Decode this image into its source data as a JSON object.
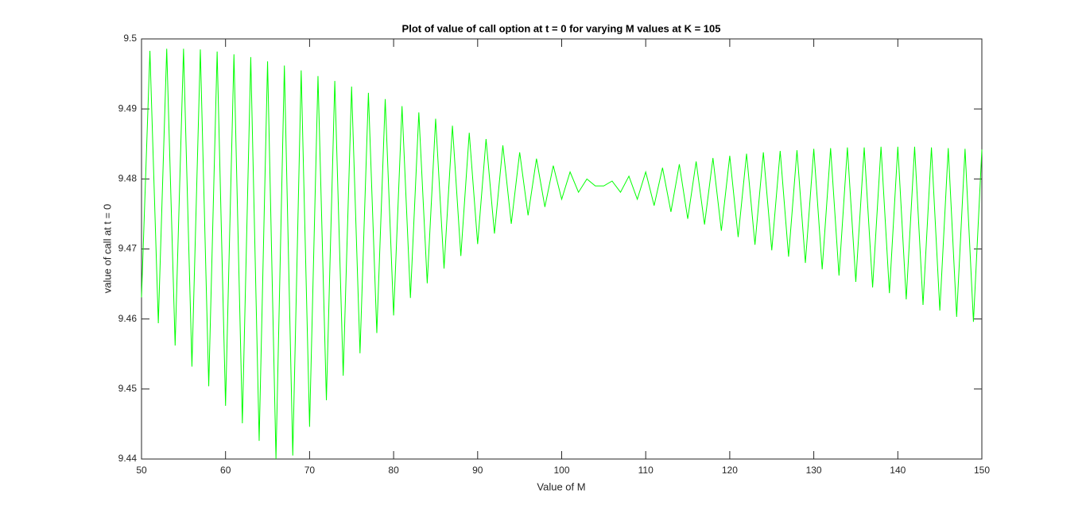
{
  "chart_data": {
    "type": "line",
    "title": "Plot of value of call option at t = 0 for varying M values at K = 105",
    "x_label": "Value of M",
    "y_label": "value of call at t = 0",
    "x": [
      50,
      51,
      52,
      53,
      54,
      55,
      56,
      57,
      58,
      59,
      60,
      61,
      62,
      63,
      64,
      65,
      66,
      67,
      68,
      69,
      70,
      71,
      72,
      73,
      74,
      75,
      76,
      77,
      78,
      79,
      80,
      81,
      82,
      83,
      84,
      85,
      86,
      87,
      88,
      89,
      90,
      91,
      92,
      93,
      94,
      95,
      96,
      97,
      98,
      99,
      100,
      101,
      102,
      103,
      104,
      105,
      106,
      107,
      108,
      109,
      110,
      111,
      112,
      113,
      114,
      115,
      116,
      117,
      118,
      119,
      120,
      121,
      122,
      123,
      124,
      125,
      126,
      127,
      128,
      129,
      130,
      131,
      132,
      133,
      134,
      135,
      136,
      137,
      138,
      139,
      140,
      141,
      142,
      143,
      144,
      145,
      146,
      147,
      148,
      149,
      150
    ],
    "series": [
      {
        "name": "value of call at t = 0",
        "color": "#00ff00",
        "values": [
          9.4631,
          9.4983,
          9.4594,
          9.4986,
          9.4562,
          9.4986,
          9.4532,
          9.4985,
          9.4504,
          9.4982,
          9.4476,
          9.4978,
          9.4451,
          9.4974,
          9.4426,
          9.4968,
          9.44,
          9.4962,
          9.4405,
          9.4955,
          9.4446,
          9.4947,
          9.4484,
          9.494,
          9.4519,
          9.4932,
          9.4551,
          9.4923,
          9.458,
          9.4914,
          9.4605,
          9.4904,
          9.463,
          9.4895,
          9.4651,
          9.4886,
          9.4672,
          9.4876,
          9.469,
          9.4866,
          9.4707,
          9.4857,
          9.4722,
          9.4848,
          9.4736,
          9.4838,
          9.4748,
          9.4829,
          9.476,
          9.4819,
          9.4771,
          9.481,
          9.4781,
          9.48,
          9.479,
          9.479,
          9.4797,
          9.4781,
          9.4804,
          9.4771,
          9.481,
          9.4762,
          9.4816,
          9.4753,
          9.4821,
          9.4743,
          9.4825,
          9.4735,
          9.483,
          9.4726,
          9.4833,
          9.4717,
          9.4836,
          9.4706,
          9.4838,
          9.4698,
          9.484,
          9.4689,
          9.4841,
          9.468,
          9.4843,
          9.4671,
          9.4844,
          9.4662,
          9.4845,
          9.4653,
          9.4845,
          9.4645,
          9.4846,
          9.4637,
          9.4846,
          9.4628,
          9.4846,
          9.462,
          9.4845,
          9.4612,
          9.4844,
          9.4603,
          9.4843,
          9.4596,
          9.4842
        ]
      }
    ],
    "xlim": [
      50,
      150
    ],
    "xticks": [
      50,
      60,
      70,
      80,
      90,
      100,
      110,
      120,
      130,
      140,
      150
    ],
    "ylim": [
      9.44,
      9.5
    ],
    "yticks": [
      9.44,
      9.45,
      9.46,
      9.47,
      9.48,
      9.49,
      9.5
    ],
    "grid": false
  }
}
